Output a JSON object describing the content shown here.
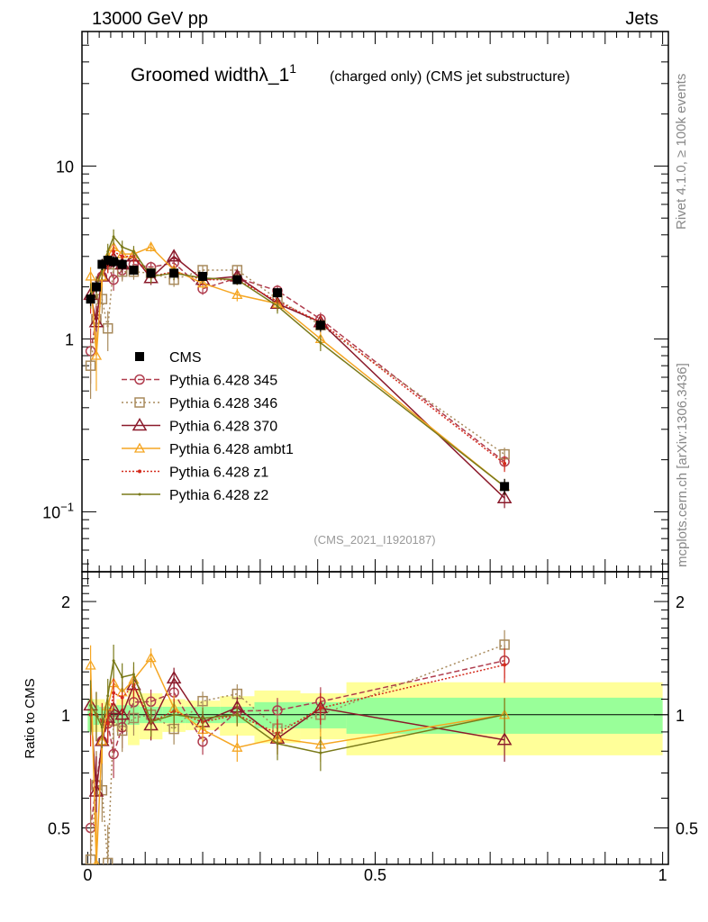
{
  "header": {
    "left": "13000 GeV pp",
    "right": "Jets"
  },
  "side_labels": {
    "rivet": "Rivet 4.1.0, ≥ 100k events",
    "mcplots": "mcplots.cern.ch [arXiv:1306.3436]"
  },
  "chart_data": {
    "type": "line",
    "title": "Groomed widthλ_1",
    "title_superscript": "1",
    "subtitle": "(charged only) (CMS jet substructure)",
    "analysis_id": "(CMS_2021_I1920187)",
    "x": [
      0.005,
      0.015,
      0.025,
      0.035,
      0.045,
      0.06,
      0.08,
      0.11,
      0.15,
      0.2,
      0.26,
      0.33,
      0.405,
      0.725
    ],
    "main_panel": {
      "yscale": "log",
      "ylim": [
        0.045,
        60
      ],
      "yticks": [
        {
          "v": 0.1,
          "label": "10",
          "exp": "−1"
        },
        {
          "v": 1,
          "label": "1",
          "exp": ""
        },
        {
          "v": 10,
          "label": "10",
          "exp": ""
        }
      ],
      "legend_position": "center-left"
    },
    "ratio_panel": {
      "ylabel": "Ratio to CMS",
      "yscale": "log",
      "ylim": [
        0.4,
        2.4
      ],
      "yticks": [
        {
          "v": 0.5,
          "label": "0.5"
        },
        {
          "v": 1,
          "label": "1"
        },
        {
          "v": 2,
          "label": "2"
        }
      ],
      "bands": [
        {
          "x0": 0.0,
          "x1": 0.01,
          "y1": 0.1,
          "y2": 0.1
        },
        {
          "x0": 0.01,
          "x1": 0.02,
          "y1": 0.06,
          "y2": 0.1
        },
        {
          "x0": 0.02,
          "x1": 0.03,
          "y1": 0.05,
          "y2": 0.1
        },
        {
          "x0": 0.03,
          "x1": 0.04,
          "y1": 0.05,
          "y2": 0.08
        },
        {
          "x0": 0.04,
          "x1": 0.05,
          "y1": 0.05,
          "y2": 0.07
        },
        {
          "x0": 0.05,
          "x1": 0.07,
          "y1": 0.06,
          "y2": 0.1
        },
        {
          "x0": 0.07,
          "x1": 0.09,
          "y1": 0.06,
          "y2": 0.17
        },
        {
          "x0": 0.09,
          "x1": 0.13,
          "y1": 0.05,
          "y2": 0.14
        },
        {
          "x0": 0.13,
          "x1": 0.17,
          "y1": 0.05,
          "y2": 0.1
        },
        {
          "x0": 0.17,
          "x1": 0.23,
          "y1": 0.05,
          "y2": 0.09
        },
        {
          "x0": 0.23,
          "x1": 0.29,
          "y1": 0.05,
          "y2": 0.12
        },
        {
          "x0": 0.29,
          "x1": 0.37,
          "y1": 0.08,
          "y2": 0.16
        },
        {
          "x0": 0.37,
          "x1": 0.45,
          "y1": 0.08,
          "y2": 0.14
        },
        {
          "x0": 0.45,
          "x1": 1.0,
          "y1": 0.11,
          "y2": 0.22
        }
      ]
    },
    "xlim": [
      -0.01,
      1.01
    ],
    "xticks": [
      {
        "v": 0,
        "label": "0"
      },
      {
        "v": 0.5,
        "label": "0.5"
      },
      {
        "v": 1,
        "label": "1"
      }
    ],
    "series": [
      {
        "name": "CMS",
        "color": "#000000",
        "marker": "square-filled",
        "dash": "none",
        "values": [
          1.7,
          2.0,
          2.7,
          2.85,
          2.8,
          2.7,
          2.5,
          2.4,
          2.4,
          2.3,
          2.2,
          1.85,
          1.2,
          0.14
        ],
        "errors": [
          0.15,
          0.15,
          0.2,
          0.2,
          0.2,
          0.2,
          0.15,
          0.15,
          0.12,
          0.12,
          0.12,
          0.12,
          0.1,
          0.015
        ]
      },
      {
        "name": "Pythia 6.428 345",
        "color": "#b03d4e",
        "marker": "circle-open",
        "dash": "6,3",
        "values": [
          0.85,
          1.3,
          2.3,
          2.7,
          2.2,
          2.5,
          2.7,
          2.6,
          2.75,
          1.95,
          2.25,
          1.9,
          1.3,
          0.195
        ],
        "errors": [
          0.3,
          0.3,
          0.3,
          0.3,
          0.3,
          0.3,
          0.25,
          0.2,
          0.2,
          0.15,
          0.15,
          0.15,
          0.12,
          0.02
        ]
      },
      {
        "name": "Pythia 6.428 346",
        "color": "#a88a5c",
        "marker": "square-open",
        "dash": "2,3",
        "values": [
          0.7,
          1.3,
          1.7,
          1.15,
          2.7,
          2.45,
          2.45,
          2.4,
          2.2,
          2.5,
          2.5,
          1.7,
          1.2,
          0.215
        ],
        "errors": [
          0.25,
          0.3,
          0.3,
          0.3,
          0.3,
          0.3,
          0.25,
          0.2,
          0.2,
          0.15,
          0.15,
          0.15,
          0.12,
          0.02
        ]
      },
      {
        "name": "Pythia 6.428 370",
        "color": "#8b1a2b",
        "marker": "triangle-open",
        "dash": "none",
        "values": [
          1.8,
          1.25,
          2.3,
          2.8,
          2.9,
          2.7,
          3.0,
          2.25,
          3.0,
          2.2,
          2.3,
          1.6,
          1.25,
          0.12
        ],
        "errors": [
          0.3,
          0.3,
          0.3,
          0.3,
          0.3,
          0.3,
          0.25,
          0.2,
          0.2,
          0.15,
          0.15,
          0.15,
          0.12,
          0.015
        ]
      },
      {
        "name": "Pythia 6.428 ambt1",
        "color": "#f5a623",
        "marker": "triangle-open-small",
        "dash": "none",
        "values": [
          2.3,
          0.8,
          2.3,
          3.0,
          3.4,
          3.1,
          3.1,
          3.4,
          2.5,
          2.1,
          1.8,
          1.6,
          1.0,
          0.14
        ],
        "errors": [
          0.3,
          0.3,
          0.3,
          0.3,
          0.3,
          0.3,
          0.25,
          0.2,
          0.2,
          0.15,
          0.15,
          0.15,
          0.1,
          0.015
        ]
      },
      {
        "name": "Pythia 6.428 z1",
        "color": "#d42a1c",
        "marker": "dot",
        "dash": "2,2",
        "values": [
          1.7,
          2.0,
          2.6,
          2.7,
          3.2,
          3.0,
          3.0,
          2.3,
          2.45,
          2.2,
          2.2,
          1.65,
          1.25,
          0.19
        ],
        "errors": [
          0.3,
          0.3,
          0.3,
          0.3,
          0.3,
          0.3,
          0.25,
          0.2,
          0.2,
          0.15,
          0.15,
          0.15,
          0.12,
          0.02
        ]
      },
      {
        "name": "Pythia 6.428 z2",
        "color": "#7a7a1a",
        "marker": "dot-small",
        "dash": "none",
        "values": [
          1.8,
          2.0,
          2.5,
          3.2,
          3.9,
          3.4,
          3.2,
          2.3,
          2.4,
          2.25,
          2.2,
          1.55,
          0.95,
          0.14
        ],
        "errors": [
          0.3,
          0.3,
          0.3,
          0.35,
          0.4,
          0.3,
          0.25,
          0.2,
          0.2,
          0.15,
          0.15,
          0.15,
          0.1,
          0.015
        ]
      }
    ]
  }
}
